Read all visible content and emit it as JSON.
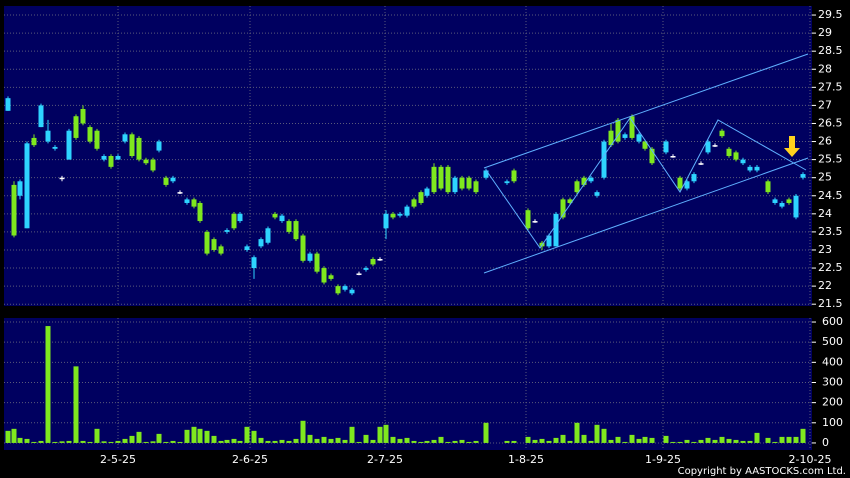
{
  "chart_data": {
    "type": "candlestick",
    "x": [
      1,
      2.5,
      4,
      5.75,
      7.5,
      9.25,
      11,
      12.75,
      14.5,
      16.25,
      18,
      19.75,
      21.5,
      23.25,
      25,
      26.75,
      28.5,
      30.25,
      32,
      33.75,
      35.5,
      37.25,
      38.75,
      40.5,
      42.25,
      44,
      45.75,
      47.5,
      49,
      50.75,
      52.5,
      54.25,
      55.75,
      57.5,
      59,
      60.75,
      62.5,
      64.25,
      66,
      67.75,
      69.5,
      71.25,
      73,
      74.75,
      76.5,
      78.25,
      80,
      81.75,
      83.5,
      85.25,
      87,
      88.75,
      90.5,
      92.25,
      94,
      95.5,
      97.25,
      99,
      100.75,
      102.5,
      104.25,
      105.75,
      107.5,
      109.25,
      111,
      112.75,
      114.5,
      116.25,
      118,
      120.5,
      125.75,
      127.5,
      131,
      132.75,
      134.5,
      136.25,
      138,
      139.75,
      141.5,
      143.25,
      145,
      146.75,
      148.25,
      150,
      151.75,
      153.5,
      155.25,
      157,
      158.75,
      160.25,
      162,
      165.5,
      167.25,
      169,
      170.75,
      172.5,
      174.25,
      176,
      177.75,
      179.5,
      181.25,
      183,
      184.75,
      186.5,
      188.25,
      191,
      192.75,
      194.5,
      196.25,
      198,
      199.75
    ],
    "open": [
      27.2,
      23.4,
      24.9,
      25.95,
      25.9,
      27.0,
      26.3,
      25.85,
      25.0,
      26.3,
      26.1,
      26.5,
      26.0,
      25.8,
      25.6,
      25.3,
      25.6,
      26.2,
      25.6,
      25.5,
      25.4,
      25.2,
      26.0,
      24.8,
      25.0,
      24.6,
      24.4,
      24.2,
      23.8,
      22.9,
      23.0,
      22.9,
      23.55,
      23.6,
      24.0,
      23.1,
      22.8,
      23.3,
      23.6,
      23.9,
      23.95,
      23.5,
      23.3,
      22.7,
      22.9,
      22.4,
      22.1,
      22.2,
      21.8,
      22.0,
      21.9,
      22.35,
      22.5,
      22.6,
      22.75,
      24.0,
      23.9,
      24.0,
      24.2,
      24.2,
      24.3,
      24.7,
      24.6,
      24.7,
      24.6,
      25.0,
      24.7,
      24.7,
      24.6,
      25.2,
      24.9,
      24.9,
      23.6,
      23.8,
      23.1,
      23.4,
      24.0,
      23.9,
      24.3,
      24.6,
      24.8,
      25.0,
      24.6,
      26.0,
      25.9,
      26.0,
      26.2,
      26.1,
      26.2,
      25.8,
      25.4,
      26.0,
      25.6,
      24.7,
      24.9,
      25.1,
      25.4,
      26.0,
      25.9,
      26.15,
      25.6,
      25.5,
      25.5,
      25.3,
      25.3,
      24.6,
      24.4,
      24.3,
      24.3,
      24.5,
      25.1
    ],
    "high": [
      27.25,
      24.9,
      24.95,
      26.0,
      26.2,
      27.05,
      26.6,
      25.9,
      25.05,
      26.35,
      26.75,
      27.0,
      26.45,
      26.35,
      25.65,
      25.65,
      25.65,
      26.25,
      26.25,
      26.15,
      25.55,
      25.55,
      26.05,
      25.05,
      25.05,
      24.65,
      24.45,
      24.45,
      24.35,
      23.55,
      23.35,
      23.15,
      23.6,
      24.05,
      24.05,
      23.15,
      22.85,
      23.35,
      23.65,
      24.05,
      24.0,
      23.85,
      23.85,
      23.45,
      22.95,
      22.95,
      22.55,
      22.35,
      22.05,
      22.05,
      21.95,
      22.4,
      22.55,
      22.8,
      22.8,
      24.1,
      24.05,
      24.05,
      24.25,
      24.45,
      24.65,
      24.75,
      25.4,
      25.35,
      25.35,
      25.05,
      25.05,
      25.05,
      24.95,
      25.25,
      24.95,
      25.25,
      24.15,
      23.85,
      23.25,
      23.45,
      24.05,
      24.45,
      24.45,
      24.95,
      25.05,
      25.05,
      24.65,
      26.05,
      26.5,
      26.65,
      26.25,
      26.75,
      26.25,
      26.05,
      25.85,
      26.05,
      25.65,
      25.05,
      24.95,
      25.15,
      25.45,
      26.05,
      25.95,
      26.35,
      25.85,
      25.75,
      25.55,
      25.35,
      25.35,
      24.95,
      24.45,
      24.35,
      24.45,
      24.55,
      25.15
    ],
    "low": [
      26.85,
      23.35,
      24.4,
      23.6,
      25.85,
      26.4,
      25.95,
      25.75,
      24.9,
      25.5,
      26.05,
      26.45,
      25.95,
      25.75,
      25.45,
      25.25,
      25.5,
      25.95,
      25.55,
      25.45,
      25.35,
      25.15,
      25.7,
      24.75,
      24.85,
      24.55,
      24.25,
      24.15,
      23.75,
      22.85,
      22.95,
      22.85,
      23.45,
      23.55,
      23.75,
      22.95,
      22.2,
      23.05,
      23.15,
      23.85,
      23.75,
      23.45,
      23.25,
      22.65,
      22.65,
      22.35,
      22.05,
      22.15,
      21.75,
      21.85,
      21.75,
      22.3,
      22.4,
      22.55,
      22.7,
      23.3,
      23.85,
      23.9,
      23.9,
      24.15,
      24.25,
      24.45,
      24.55,
      24.65,
      24.55,
      24.55,
      24.65,
      24.65,
      24.55,
      24.95,
      24.8,
      24.85,
      23.55,
      23.75,
      23.0,
      23.05,
      23.1,
      23.85,
      24.25,
      24.55,
      24.75,
      24.85,
      24.45,
      24.95,
      25.85,
      25.95,
      26.05,
      26.05,
      25.95,
      25.75,
      25.35,
      25.65,
      25.55,
      24.65,
      24.65,
      24.85,
      25.35,
      25.65,
      25.85,
      26.1,
      25.55,
      25.45,
      25.35,
      25.15,
      25.15,
      24.55,
      24.25,
      24.15,
      24.25,
      23.85,
      24.95
    ],
    "close": [
      26.85,
      24.8,
      24.5,
      23.6,
      26.1,
      26.4,
      26.0,
      25.8,
      25.0,
      25.5,
      26.7,
      26.9,
      26.4,
      26.3,
      25.5,
      25.6,
      25.5,
      26.0,
      26.2,
      26.1,
      25.5,
      25.5,
      25.75,
      25.0,
      24.9,
      24.6,
      24.3,
      24.4,
      24.3,
      23.5,
      23.3,
      23.1,
      23.5,
      24.0,
      23.8,
      23.0,
      22.5,
      23.1,
      23.2,
      24.0,
      23.8,
      23.8,
      23.8,
      23.4,
      22.7,
      22.9,
      22.5,
      22.3,
      22.0,
      21.9,
      21.8,
      22.35,
      22.45,
      22.75,
      22.75,
      23.6,
      24.0,
      23.95,
      23.95,
      24.4,
      24.6,
      24.5,
      25.3,
      25.3,
      25.3,
      24.6,
      25.0,
      25.0,
      24.9,
      25.0,
      24.85,
      25.2,
      24.1,
      23.8,
      23.2,
      23.1,
      23.1,
      24.4,
      24.4,
      24.9,
      25.0,
      24.9,
      24.5,
      25.0,
      26.3,
      26.6,
      26.1,
      26.7,
      26.0,
      26.0,
      25.8,
      25.7,
      25.6,
      25.0,
      24.7,
      24.9,
      25.4,
      25.7,
      25.9,
      26.3,
      25.8,
      25.7,
      25.4,
      25.2,
      25.2,
      24.9,
      24.3,
      24.2,
      24.4,
      23.9,
      25.0
    ],
    "volume": [
      60,
      70,
      25,
      20,
      5,
      10,
      580,
      5,
      8,
      10,
      380,
      10,
      5,
      70,
      8,
      5,
      10,
      20,
      35,
      55,
      5,
      8,
      45,
      5,
      10,
      5,
      65,
      80,
      70,
      60,
      35,
      10,
      15,
      20,
      10,
      80,
      60,
      25,
      10,
      10,
      15,
      10,
      20,
      110,
      40,
      20,
      30,
      20,
      25,
      15,
      80,
      5,
      40,
      15,
      80,
      90,
      30,
      20,
      25,
      10,
      5,
      10,
      15,
      30,
      5,
      10,
      15,
      5,
      10,
      100,
      10,
      10,
      30,
      15,
      20,
      10,
      25,
      40,
      10,
      100,
      40,
      10,
      90,
      70,
      15,
      30,
      5,
      40,
      20,
      30,
      25,
      35,
      5,
      5,
      15,
      5,
      15,
      25,
      15,
      30,
      20,
      15,
      10,
      10,
      50,
      25,
      5,
      30,
      30,
      30,
      70
    ],
    "xlim": [
      0,
      202
    ],
    "xticks": [
      {
        "value": 28.5,
        "label": "2-5-25"
      },
      {
        "value": 61.5,
        "label": "2-6-25"
      },
      {
        "value": 95.25,
        "label": "2-7-25"
      },
      {
        "value": 130.5,
        "label": "1-8-25"
      },
      {
        "value": 164.75,
        "label": "1-9-25"
      },
      {
        "value": 201.5,
        "label": "2-10-25"
      }
    ],
    "ylim": [
      21.45,
      29.75
    ],
    "yticks": [
      21.5,
      22,
      22.5,
      23,
      23.5,
      24,
      24.5,
      25,
      25.5,
      26,
      26.5,
      27,
      27.5,
      28,
      28.5,
      29,
      29.5
    ],
    "volume_ylim": [
      -35,
      620
    ],
    "volume_yticks": [
      0,
      100,
      200,
      300,
      400,
      500,
      600
    ],
    "up_color": "#7fe81e",
    "down_color": "#2ed4ff",
    "doji_color": "#ffffff",
    "volume_color": "#7fe81e",
    "grid": true
  },
  "footer": "Copyright by AASTOCKS.com Ltd."
}
